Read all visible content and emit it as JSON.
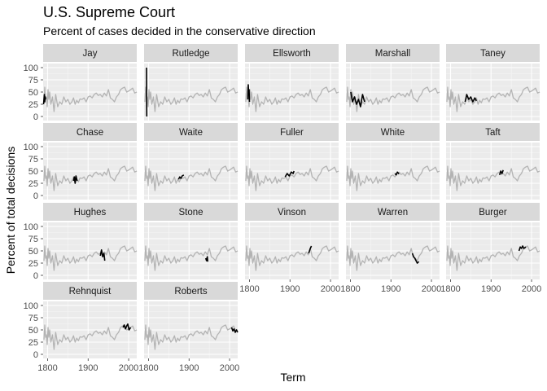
{
  "chart_data": {
    "type": "line",
    "facet_layout": "wrap",
    "title": "U.S. Supreme Court",
    "subtitle": "Percent of cases decided in the conservative direction",
    "xlabel": "Term",
    "ylabel": "Percent of total decisions",
    "xlim": [
      1789,
      2020
    ],
    "ylim": [
      0,
      100
    ],
    "x_ticks": [
      1800,
      1900,
      2000
    ],
    "y_ticks": [
      0,
      25,
      50,
      75,
      100
    ],
    "grid": true,
    "colors": {
      "panel_bg": "#ebebeb",
      "grid_major": "#ffffff",
      "strip_bg": "#d9d9d9",
      "background_series": "#b3b3b3",
      "highlight_series": "#000000"
    },
    "all_terms": {
      "x": [
        1791,
        1793,
        1795,
        1797,
        1799,
        1801,
        1803,
        1805,
        1808,
        1812,
        1816,
        1820,
        1825,
        1830,
        1835,
        1840,
        1845,
        1850,
        1855,
        1860,
        1864,
        1868,
        1872,
        1876,
        1880,
        1885,
        1890,
        1895,
        1900,
        1905,
        1910,
        1915,
        1920,
        1925,
        1930,
        1935,
        1940,
        1945,
        1950,
        1955,
        1960,
        1965,
        1970,
        1975,
        1980,
        1985,
        1990,
        1995,
        2000,
        2005,
        2010,
        2015,
        2020
      ],
      "y": [
        30,
        60,
        35,
        40,
        20,
        55,
        35,
        50,
        25,
        40,
        10,
        45,
        20,
        30,
        25,
        40,
        30,
        35,
        25,
        30,
        38,
        25,
        33,
        28,
        36,
        35,
        38,
        30,
        40,
        42,
        38,
        45,
        48,
        43,
        45,
        40,
        48,
        42,
        55,
        38,
        35,
        30,
        40,
        45,
        55,
        58,
        60,
        50,
        52,
        55,
        58,
        48,
        50
      ]
    },
    "panels": [
      {
        "name": "Jay",
        "x": [
          1790,
          1791,
          1792,
          1793,
          1794,
          1795
        ],
        "y": [
          25,
          35,
          45,
          30,
          40,
          35
        ]
      },
      {
        "name": "Rutledge",
        "x": [
          1795,
          1795.3,
          1795.6
        ],
        "y": [
          100,
          50,
          0
        ]
      },
      {
        "name": "Ellsworth",
        "x": [
          1796,
          1797,
          1798,
          1799,
          1800
        ],
        "y": [
          35,
          65,
          45,
          55,
          30
        ]
      },
      {
        "name": "Marshall",
        "x": [
          1801,
          1805,
          1810,
          1815,
          1820,
          1825,
          1830,
          1835
        ],
        "y": [
          50,
          30,
          40,
          25,
          35,
          20,
          45,
          30
        ]
      },
      {
        "name": "Taney",
        "x": [
          1836,
          1840,
          1845,
          1850,
          1855,
          1860,
          1864
        ],
        "y": [
          30,
          45,
          35,
          40,
          30,
          38,
          32
        ]
      },
      {
        "name": "Chase",
        "x": [
          1864,
          1866,
          1868,
          1870,
          1873
        ],
        "y": [
          30,
          38,
          25,
          40,
          30
        ]
      },
      {
        "name": "Waite",
        "x": [
          1874,
          1877,
          1880,
          1883,
          1887
        ],
        "y": [
          33,
          38,
          35,
          40,
          42
        ]
      },
      {
        "name": "Fuller",
        "x": [
          1888,
          1893,
          1898,
          1903,
          1908,
          1910
        ],
        "y": [
          38,
          45,
          40,
          48,
          45,
          50
        ]
      },
      {
        "name": "White",
        "x": [
          1910,
          1913,
          1916,
          1920
        ],
        "y": [
          45,
          42,
          48,
          44
        ]
      },
      {
        "name": "Taft",
        "x": [
          1921,
          1924,
          1927,
          1930
        ],
        "y": [
          42,
          50,
          45,
          52
        ]
      },
      {
        "name": "Hughes",
        "x": [
          1930,
          1933,
          1936,
          1939,
          1941
        ],
        "y": [
          40,
          52,
          38,
          45,
          30
        ]
      },
      {
        "name": "Stone",
        "x": [
          1941,
          1943,
          1945,
          1946
        ],
        "y": [
          35,
          30,
          38,
          28
        ]
      },
      {
        "name": "Vinson",
        "x": [
          1946,
          1948,
          1950,
          1953
        ],
        "y": [
          45,
          50,
          55,
          60
        ]
      },
      {
        "name": "Warren",
        "x": [
          1953,
          1956,
          1959,
          1962,
          1965,
          1969
        ],
        "y": [
          45,
          38,
          35,
          30,
          25,
          28
        ]
      },
      {
        "name": "Burger",
        "x": [
          1969,
          1972,
          1975,
          1978,
          1981,
          1986
        ],
        "y": [
          50,
          58,
          55,
          60,
          55,
          58
        ]
      },
      {
        "name": "Rehnquist",
        "x": [
          1986,
          1989,
          1992,
          1995,
          1998,
          2001,
          2005
        ],
        "y": [
          55,
          60,
          52,
          58,
          62,
          50,
          55
        ]
      },
      {
        "name": "Roberts",
        "x": [
          2005,
          2008,
          2011,
          2014,
          2017,
          2020
        ],
        "y": [
          55,
          48,
          52,
          45,
          50,
          45
        ]
      }
    ]
  }
}
